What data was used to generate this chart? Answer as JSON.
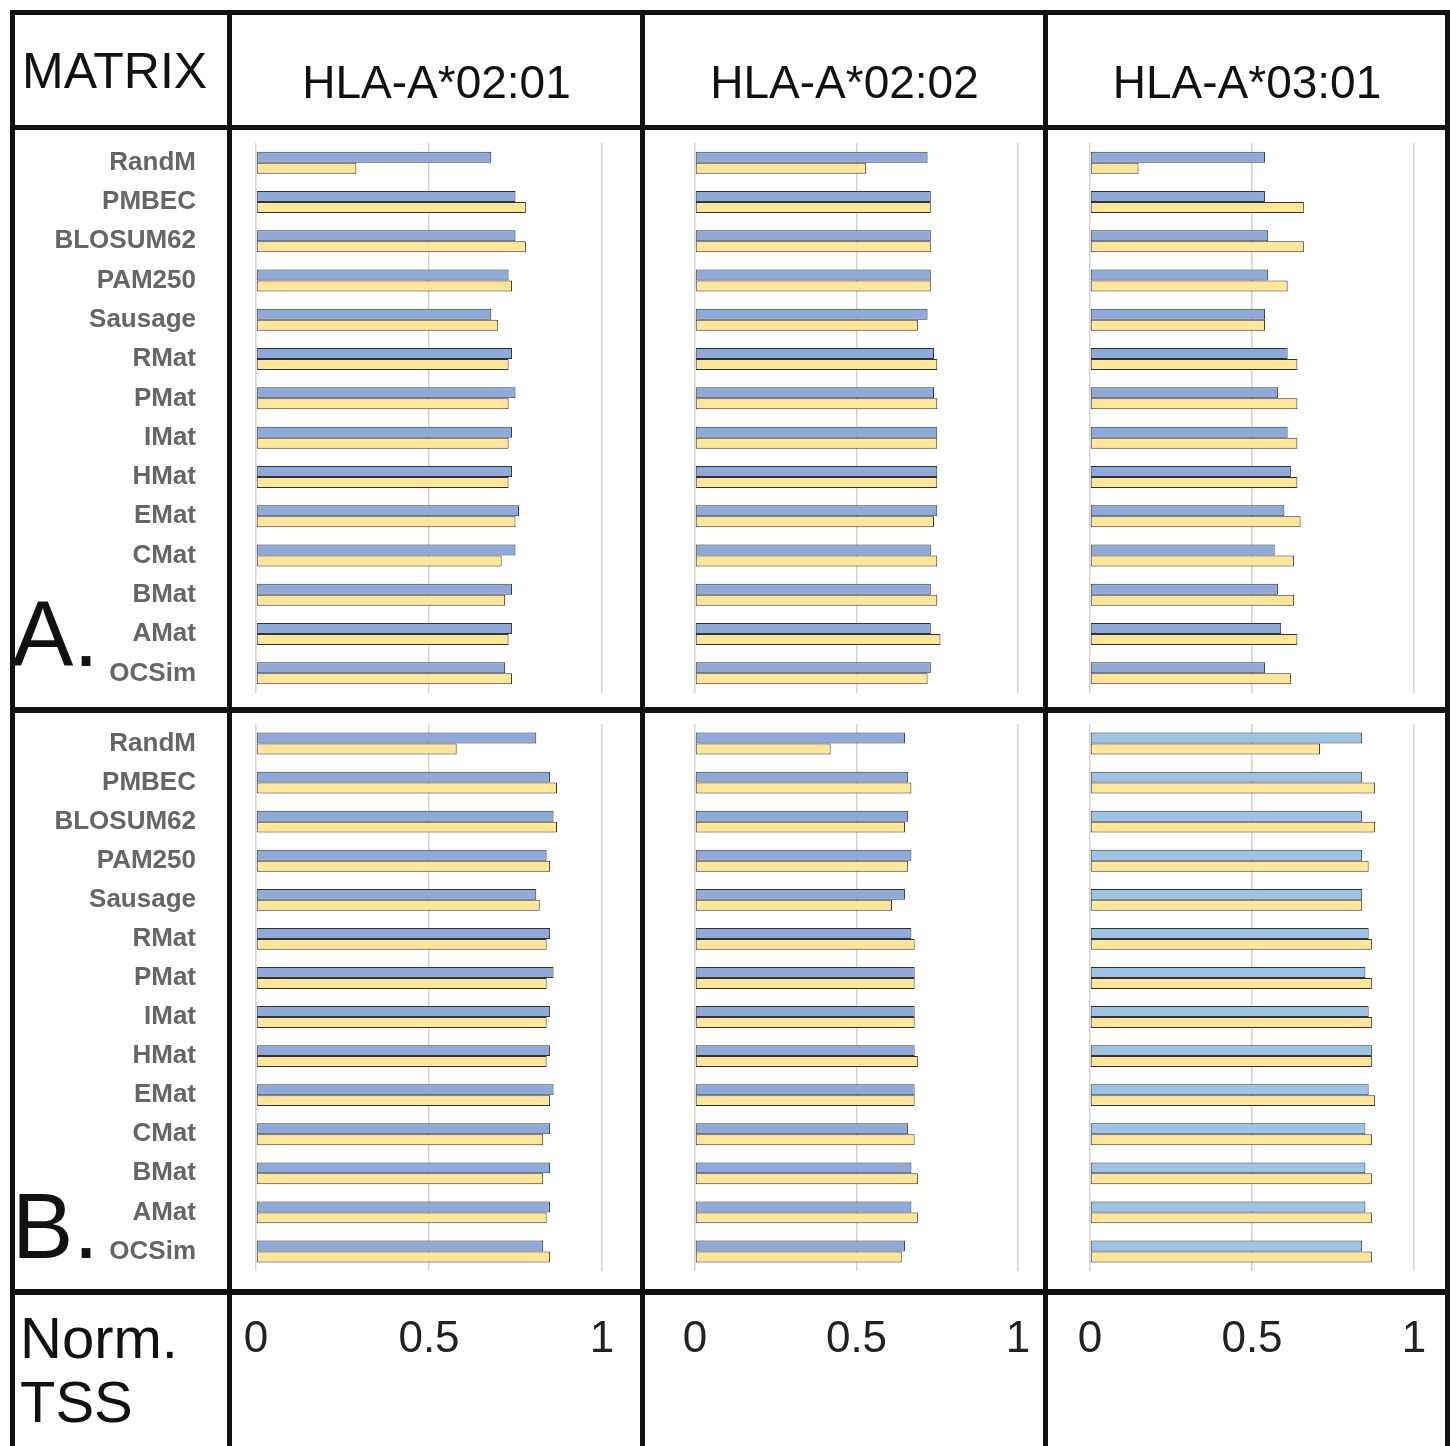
{
  "chart_data": [
    {
      "type": "bar",
      "orientation": "horizontal",
      "title": "HLA-A*02:01",
      "ylabel": "MATRIX",
      "annotations": [
        "A."
      ],
      "categories": [
        "RandM",
        "PMBEC",
        "BLOSUM62",
        "PAM250",
        "Sausage",
        "RMat",
        "PMat",
        "IMat",
        "HMat",
        "EMat",
        "CMat",
        "BMat",
        "AMat",
        "OCSim"
      ],
      "series": [
        {
          "color": "#8eaadb",
          "values": [
            0.68,
            0.75,
            0.75,
            0.73,
            0.68,
            0.74,
            0.75,
            0.74,
            0.74,
            0.76,
            0.75,
            0.74,
            0.74,
            0.72
          ]
        },
        {
          "color": "#ffe699",
          "values": [
            0.29,
            0.78,
            0.78,
            0.74,
            0.7,
            0.73,
            0.73,
            0.73,
            0.73,
            0.75,
            0.71,
            0.72,
            0.73,
            0.74
          ]
        }
      ],
      "xlim": [
        0,
        1
      ],
      "xticks": [
        0,
        0.5,
        1
      ],
      "grid": "x",
      "tick_labels": "y"
    },
    {
      "type": "bar",
      "orientation": "horizontal",
      "title": "HLA-A*02:02",
      "categories": [
        null,
        null,
        null,
        null,
        null,
        null,
        null,
        null,
        null,
        null,
        null,
        null,
        null,
        null
      ],
      "series": [
        {
          "color": "#8eaadb",
          "values": [
            0.72,
            0.73,
            0.73,
            0.73,
            0.72,
            0.74,
            0.74,
            0.75,
            0.75,
            0.75,
            0.73,
            0.73,
            0.73,
            0.73
          ]
        },
        {
          "color": "#ffe699",
          "values": [
            0.53,
            0.73,
            0.73,
            0.73,
            0.69,
            0.75,
            0.75,
            0.75,
            0.75,
            0.74,
            0.75,
            0.75,
            0.76,
            0.72
          ]
        }
      ],
      "xlim": [
        0,
        1
      ],
      "xticks": [
        0,
        0.5,
        1
      ],
      "grid": "x",
      "tick_labels": false
    },
    {
      "type": "bar",
      "orientation": "horizontal",
      "title": "HLA-A*03:01",
      "categories": [
        null,
        null,
        null,
        null,
        null,
        null,
        null,
        null,
        null,
        null,
        null,
        null,
        null,
        null
      ],
      "series": [
        {
          "color": "#8eaadb",
          "values": [
            0.54,
            0.54,
            0.55,
            0.55,
            0.54,
            0.61,
            0.58,
            0.61,
            0.62,
            0.6,
            0.57,
            0.58,
            0.59,
            0.54
          ]
        },
        {
          "color": "#ffe699",
          "values": [
            0.15,
            0.66,
            0.66,
            0.61,
            0.54,
            0.64,
            0.64,
            0.64,
            0.64,
            0.65,
            0.63,
            0.63,
            0.64,
            0.62
          ]
        }
      ],
      "xlim": [
        0,
        1
      ],
      "xticks": [
        0,
        0.5,
        1
      ],
      "grid": "x",
      "tick_labels": false
    },
    {
      "type": "bar",
      "orientation": "horizontal",
      "xlabel": "Norm. TSS",
      "annotations": [
        "B."
      ],
      "categories": [
        "RandM",
        "PMBEC",
        "BLOSUM62",
        "PAM250",
        "Sausage",
        "RMat",
        "PMat",
        "IMat",
        "HMat",
        "EMat",
        "CMat",
        "BMat",
        "AMat",
        "OCSim"
      ],
      "series": [
        {
          "color": "#8eaadb",
          "values": [
            0.81,
            0.85,
            0.86,
            0.84,
            0.81,
            0.85,
            0.86,
            0.85,
            0.85,
            0.86,
            0.85,
            0.85,
            0.85,
            0.83
          ]
        },
        {
          "color": "#ffe699",
          "values": [
            0.58,
            0.87,
            0.87,
            0.85,
            0.82,
            0.84,
            0.84,
            0.84,
            0.84,
            0.85,
            0.83,
            0.83,
            0.84,
            0.85
          ]
        }
      ],
      "xlim": [
        0,
        1
      ],
      "xticks": [
        0,
        0.5,
        1
      ],
      "grid": "x"
    },
    {
      "type": "bar",
      "orientation": "horizontal",
      "categories": [
        null,
        null,
        null,
        null,
        null,
        null,
        null,
        null,
        null,
        null,
        null,
        null,
        null,
        null
      ],
      "series": [
        {
          "color": "#8eaadb",
          "values": [
            0.65,
            0.66,
            0.66,
            0.67,
            0.65,
            0.67,
            0.68,
            0.68,
            0.68,
            0.68,
            0.66,
            0.67,
            0.67,
            0.65
          ]
        },
        {
          "color": "#ffe699",
          "values": [
            0.42,
            0.67,
            0.65,
            0.66,
            0.61,
            0.68,
            0.68,
            0.68,
            0.69,
            0.68,
            0.68,
            0.69,
            0.69,
            0.64
          ]
        }
      ],
      "xlim": [
        0,
        1
      ],
      "xticks": [
        0,
        0.5,
        1
      ],
      "grid": "x",
      "tick_labels": "x"
    },
    {
      "type": "bar",
      "orientation": "horizontal",
      "categories": [
        null,
        null,
        null,
        null,
        null,
        null,
        null,
        null,
        null,
        null,
        null,
        null,
        null,
        null
      ],
      "series": [
        {
          "color": "#9dc3e6",
          "values": [
            0.84,
            0.84,
            0.84,
            0.84,
            0.84,
            0.86,
            0.85,
            0.86,
            0.87,
            0.86,
            0.85,
            0.85,
            0.85,
            0.84
          ]
        },
        {
          "color": "#ffe699",
          "values": [
            0.71,
            0.88,
            0.88,
            0.86,
            0.84,
            0.87,
            0.87,
            0.87,
            0.87,
            0.88,
            0.87,
            0.87,
            0.87,
            0.87
          ]
        }
      ],
      "xlim": [
        0,
        1
      ],
      "xticks": [
        0,
        0.5,
        1
      ],
      "grid": "x",
      "tick_labels": "x"
    }
  ]
}
